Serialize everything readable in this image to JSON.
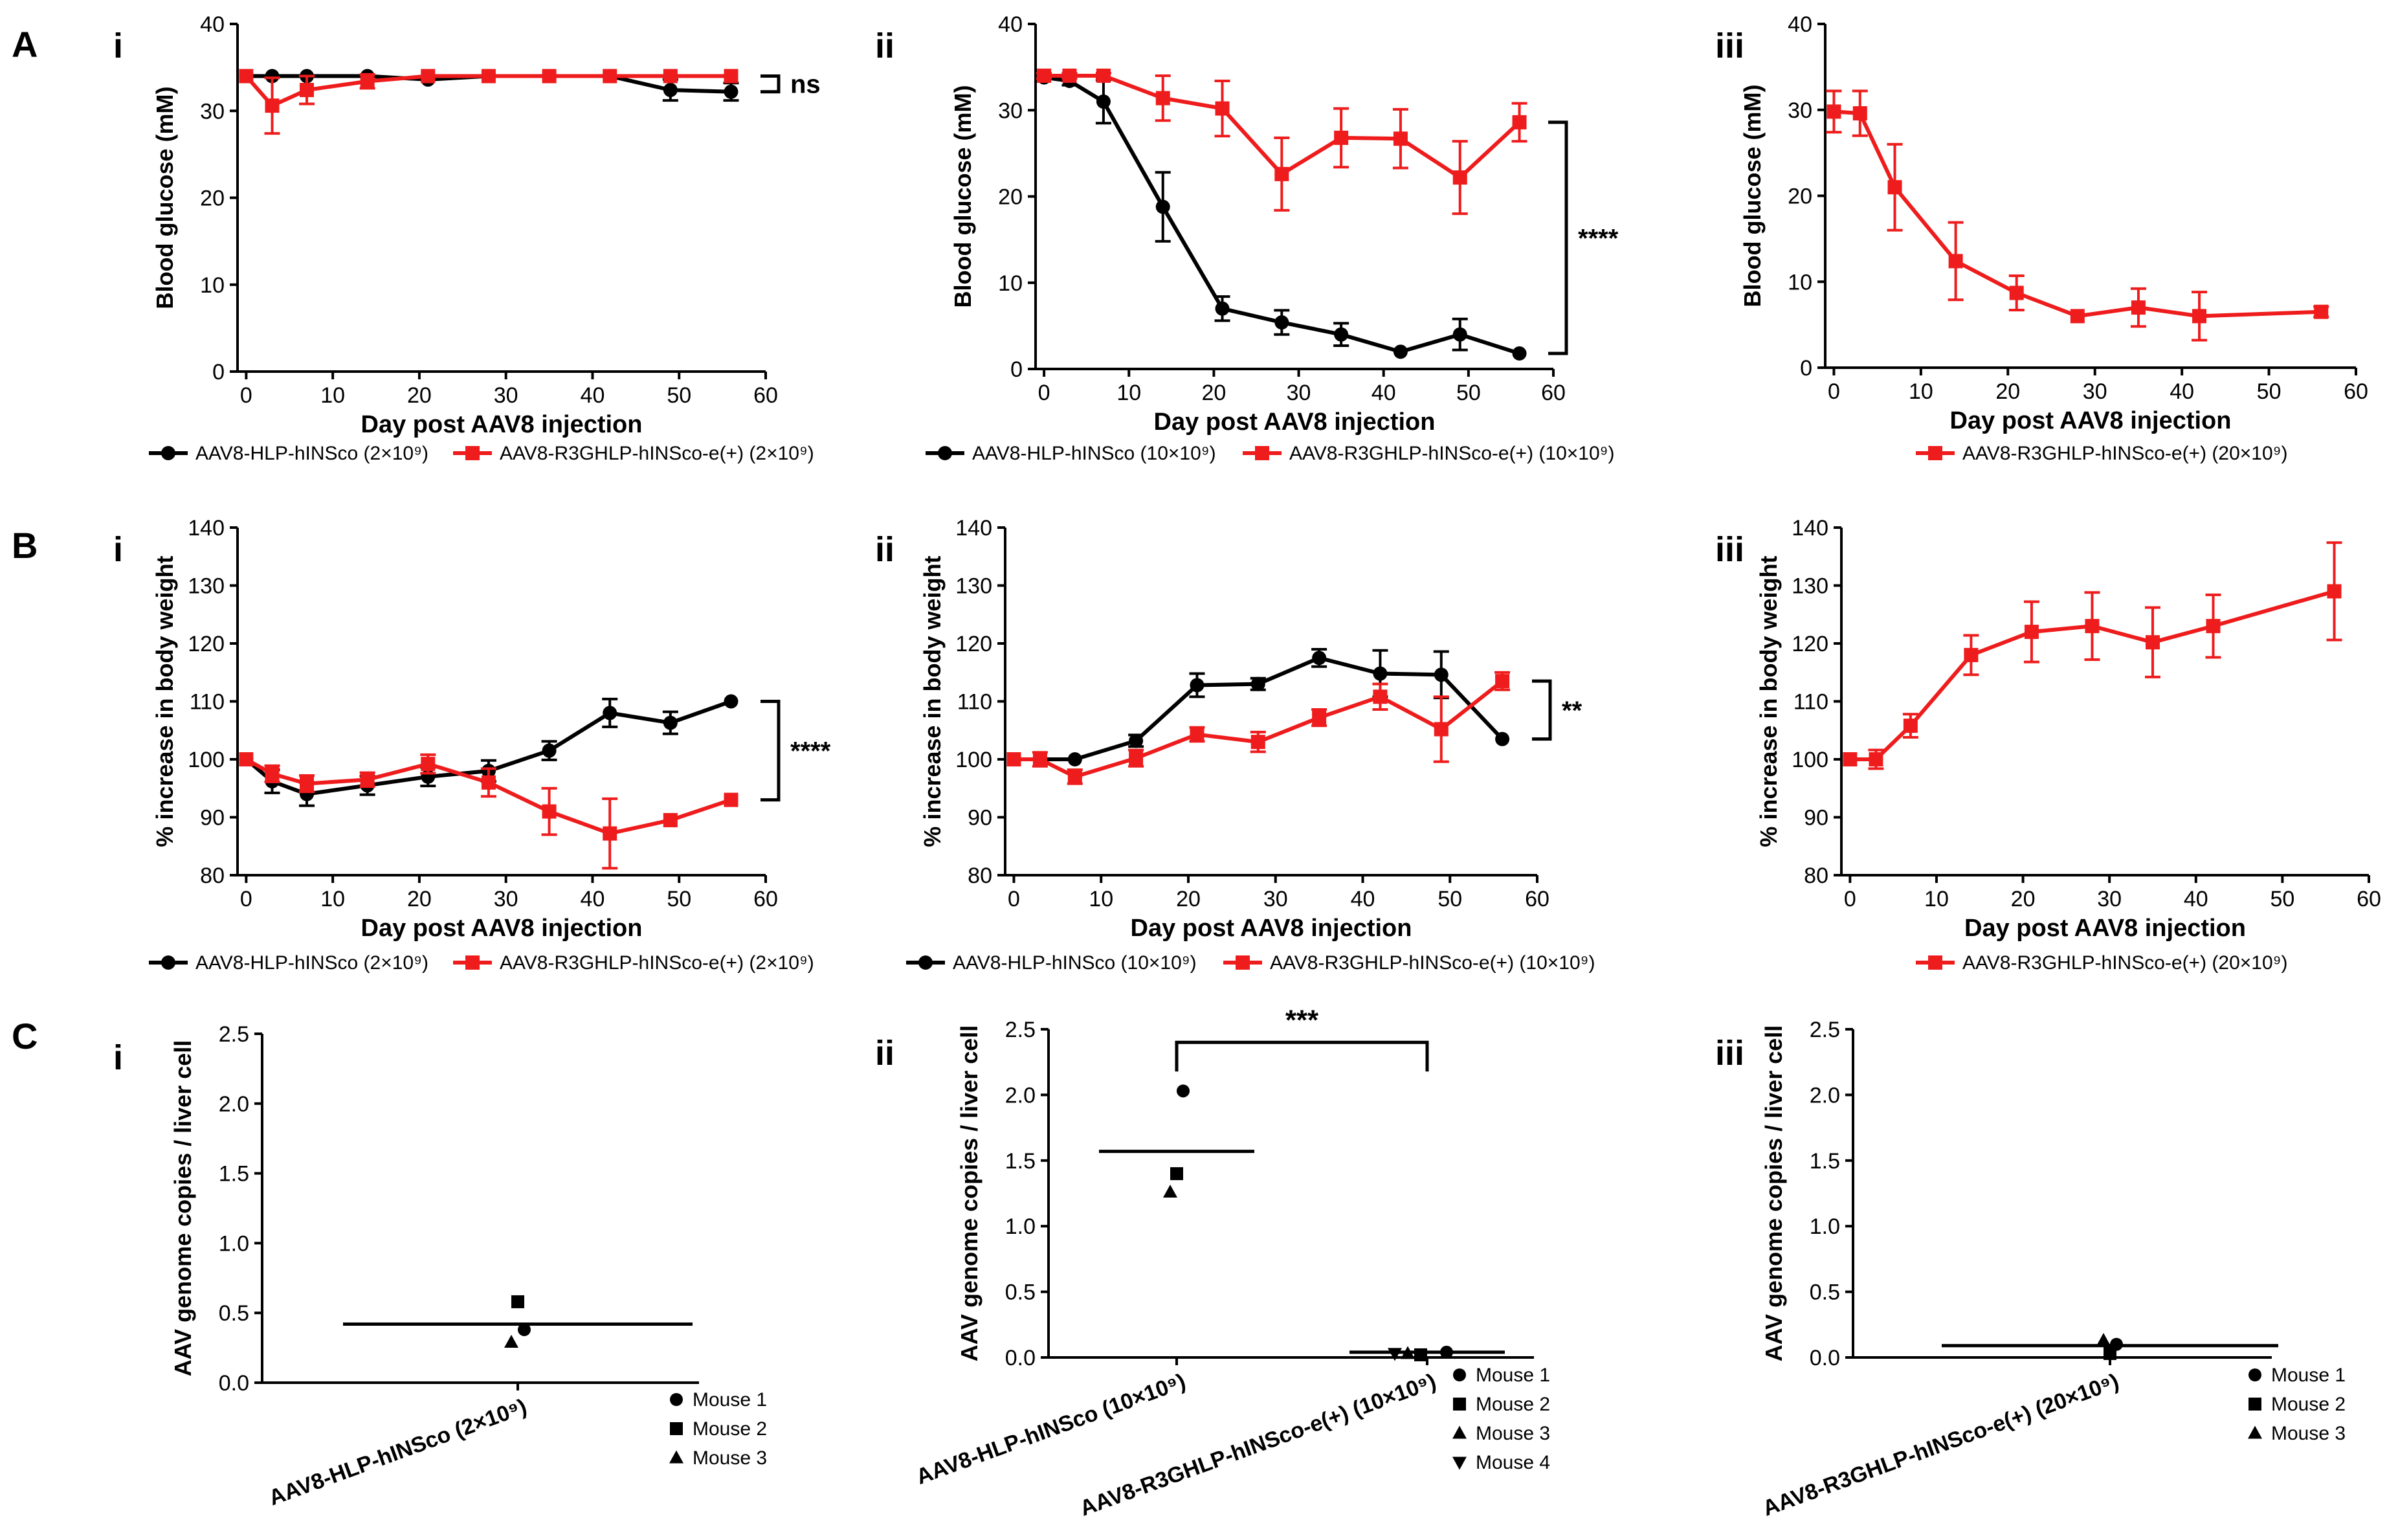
{
  "colors": {
    "black_series": "#000000",
    "red_series": "#ee1c1c"
  },
  "section_labels": [
    "A",
    "B",
    "C"
  ],
  "panel_labels": [
    "i",
    "ii",
    "iii"
  ],
  "chart_data": [
    {
      "id": "A-i",
      "type": "line",
      "ylabel": "Blood glucose (mM)",
      "xlabel": "Day post AAV8 injection",
      "xlim": [
        -1,
        60
      ],
      "ylim": [
        0,
        40
      ],
      "xticks": [
        0,
        10,
        20,
        30,
        40,
        50,
        60
      ],
      "yticks": [
        0,
        10,
        20,
        30,
        40
      ],
      "series": [
        {
          "name": "AAV8-HLP-hINSco",
          "dose": "2×10",
          "exp": "9",
          "color": "#000000",
          "marker": "circle",
          "x": [
            0,
            3,
            7,
            14,
            21,
            28,
            35,
            42,
            49,
            56
          ],
          "y": [
            34,
            34,
            34,
            34,
            33.6,
            34,
            34,
            34,
            32.4,
            32.2
          ],
          "err": [
            0,
            0,
            0,
            0,
            0,
            0,
            0,
            0,
            1.2,
            1.0
          ]
        },
        {
          "name": "AAV8-R3GHLP-hINSco-e(+)",
          "dose": "2×10",
          "exp": "9",
          "color": "#ee1c1c",
          "marker": "square",
          "x": [
            0,
            3,
            7,
            14,
            21,
            28,
            35,
            42,
            49,
            56
          ],
          "y": [
            34,
            30.6,
            32.4,
            33.4,
            34,
            34,
            34,
            34,
            34,
            34
          ],
          "err": [
            0,
            3.2,
            1.6,
            0.8,
            0,
            0,
            0,
            0,
            0,
            0
          ]
        }
      ],
      "significance": {
        "label": "ns",
        "y1": 34,
        "y2": 32.2
      }
    },
    {
      "id": "A-ii",
      "type": "line",
      "ylabel": "Blood glucose (mM)",
      "xlabel": "Day post AAV8 injection",
      "xlim": [
        -1,
        60
      ],
      "ylim": [
        0,
        40
      ],
      "xticks": [
        0,
        10,
        20,
        30,
        40,
        50,
        60
      ],
      "yticks": [
        0,
        10,
        20,
        30,
        40
      ],
      "series": [
        {
          "name": "AAV8-HLP-hINSco",
          "dose": "10×10",
          "exp": "9",
          "color": "#000000",
          "marker": "circle",
          "x": [
            0,
            3,
            7,
            14,
            21,
            28,
            35,
            42,
            49,
            56
          ],
          "y": [
            33.8,
            33.4,
            31,
            18.8,
            7,
            5.4,
            4,
            2,
            4,
            1.8
          ],
          "err": [
            0,
            0.5,
            2.5,
            4,
            1.4,
            1.4,
            1.3,
            0,
            1.8,
            0
          ]
        },
        {
          "name": "AAV8-R3GHLP-hINSco-e(+)",
          "dose": "10×10",
          "exp": "9",
          "color": "#ee1c1c",
          "marker": "square",
          "x": [
            0,
            3,
            7,
            14,
            21,
            28,
            35,
            42,
            49,
            56
          ],
          "y": [
            34,
            34,
            34,
            31.4,
            30.2,
            22.6,
            26.8,
            26.7,
            22.2,
            28.6
          ],
          "err": [
            0.3,
            0.3,
            0.3,
            2.6,
            3.2,
            4.2,
            3.4,
            3.4,
            4.2,
            2.2
          ]
        }
      ],
      "significance": {
        "label": "****",
        "y1": 28.6,
        "y2": 1.8
      }
    },
    {
      "id": "A-iii",
      "type": "line",
      "ylabel": "Blood glucose (mM)",
      "xlabel": "Day post AAV8 injection",
      "xlim": [
        -1,
        60
      ],
      "ylim": [
        0,
        40
      ],
      "xticks": [
        0,
        10,
        20,
        30,
        40,
        50,
        60
      ],
      "yticks": [
        0,
        10,
        20,
        30,
        40
      ],
      "series": [
        {
          "name": "AAV8-R3GHLP-hINSco-e(+)",
          "dose": "20×10",
          "exp": "9",
          "color": "#ee1c1c",
          "marker": "square",
          "x": [
            0,
            3,
            7,
            14,
            21,
            28,
            35,
            42,
            56
          ],
          "y": [
            29.8,
            29.6,
            21,
            12.4,
            8.7,
            6,
            7,
            6,
            6.5
          ],
          "err": [
            2.4,
            2.6,
            5,
            4.5,
            2,
            0,
            2.2,
            2.8,
            0.6
          ]
        }
      ]
    },
    {
      "id": "B-i",
      "type": "line",
      "ylabel": "% increase in body weight",
      "xlabel": "Day post AAV8 injection",
      "xlim": [
        -1,
        60
      ],
      "ylim": [
        80,
        140
      ],
      "xticks": [
        0,
        10,
        20,
        30,
        40,
        50,
        60
      ],
      "yticks": [
        80,
        90,
        100,
        110,
        120,
        130,
        140
      ],
      "series": [
        {
          "name": "AAV8-HLP-hINSco",
          "dose": "2×10",
          "exp": "9",
          "color": "#000000",
          "marker": "circle",
          "x": [
            0,
            3,
            7,
            14,
            21,
            28,
            35,
            42,
            49,
            56
          ],
          "y": [
            100,
            96.2,
            94,
            95.5,
            97,
            98,
            101.5,
            108,
            106.3,
            110
          ],
          "err": [
            0,
            2,
            2,
            1.6,
            1.6,
            1.8,
            1.6,
            2.4,
            1.9,
            0
          ]
        },
        {
          "name": "AAV8-R3GHLP-hINSco-e(+)",
          "dose": "2×10",
          "exp": "9",
          "color": "#ee1c1c",
          "marker": "square",
          "x": [
            0,
            3,
            7,
            14,
            21,
            28,
            35,
            42,
            49,
            56
          ],
          "y": [
            100,
            97.5,
            95.8,
            96.5,
            99.2,
            96,
            91,
            87.2,
            89.5,
            93
          ],
          "err": [
            0,
            1.4,
            1.4,
            1.2,
            1.6,
            2.4,
            4,
            6,
            0,
            0
          ]
        }
      ],
      "significance": {
        "label": "****",
        "y1": 110,
        "y2": 93
      }
    },
    {
      "id": "B-ii",
      "type": "line",
      "ylabel": "% increase in body weight",
      "xlabel": "Day post AAV8 injection",
      "xlim": [
        -1,
        60
      ],
      "ylim": [
        80,
        140
      ],
      "xticks": [
        0,
        10,
        20,
        30,
        40,
        50,
        60
      ],
      "yticks": [
        80,
        90,
        100,
        110,
        120,
        130,
        140
      ],
      "series": [
        {
          "name": "AAV8-HLP-hINSco",
          "dose": "10×10",
          "exp": "9",
          "color": "#000000",
          "marker": "circle",
          "x": [
            0,
            3,
            7,
            14,
            21,
            28,
            35,
            42,
            49,
            56
          ],
          "y": [
            100,
            100,
            100,
            103.2,
            112.8,
            113,
            117.5,
            114.8,
            114.6,
            103.5
          ],
          "err": [
            0,
            0,
            0,
            1,
            2,
            1,
            1.5,
            4,
            4,
            0
          ]
        },
        {
          "name": "AAV8-R3GHLP-hINSco-e(+)",
          "dose": "10×10",
          "exp": "9",
          "color": "#ee1c1c",
          "marker": "square",
          "x": [
            0,
            3,
            7,
            14,
            21,
            28,
            35,
            42,
            49,
            56
          ],
          "y": [
            100,
            100,
            97,
            100.2,
            104.3,
            103,
            107.2,
            110.8,
            105.2,
            113.5
          ],
          "err": [
            0,
            1.2,
            1.2,
            1.4,
            1.2,
            1.7,
            1.4,
            2.2,
            5.6,
            1.5
          ]
        }
      ],
      "significance": {
        "label": "**",
        "y1": 113.5,
        "y2": 103.5
      }
    },
    {
      "id": "B-iii",
      "type": "line",
      "ylabel": "% increase in body weight",
      "xlabel": "Day post AAV8 injection",
      "xlim": [
        -1,
        60
      ],
      "ylim": [
        80,
        140
      ],
      "xticks": [
        0,
        10,
        20,
        30,
        40,
        50,
        60
      ],
      "yticks": [
        80,
        90,
        100,
        110,
        120,
        130,
        140
      ],
      "series": [
        {
          "name": "AAV8-R3GHLP-hINSco-e(+)",
          "dose": "20×10",
          "exp": "9",
          "color": "#ee1c1c",
          "marker": "square",
          "x": [
            0,
            3,
            7,
            14,
            21,
            28,
            35,
            42,
            56
          ],
          "y": [
            100,
            100,
            105.8,
            118,
            122,
            123,
            120.2,
            123,
            129
          ],
          "err": [
            0,
            1.6,
            2,
            3.4,
            5.2,
            5.8,
            6,
            5.4,
            8.4
          ]
        }
      ]
    },
    {
      "id": "C-i",
      "type": "scatter",
      "ylabel": "AAV genome copies / liver cell",
      "ylim": [
        0,
        2.5
      ],
      "yticks": [
        0.0,
        0.5,
        1.0,
        1.5,
        2.0,
        2.5
      ],
      "groups": [
        {
          "name": "AAV8-HLP-hINSco",
          "dose": "2×10",
          "exp": "9",
          "mean": 0.42,
          "points": [
            {
              "mouse": "Mouse 1",
              "value": 0.38
            },
            {
              "mouse": "Mouse 2",
              "value": 0.58
            },
            {
              "mouse": "Mouse 3",
              "value": 0.29
            }
          ]
        }
      ],
      "legend": [
        "Mouse 1",
        "Mouse 2",
        "Mouse 3"
      ]
    },
    {
      "id": "C-ii",
      "type": "scatter",
      "ylabel": "AAV genome copies / liver cell",
      "ylim": [
        0,
        2.5
      ],
      "yticks": [
        0.0,
        0.5,
        1.0,
        1.5,
        2.0,
        2.5
      ],
      "groups": [
        {
          "name": "AAV8-HLP-hINSco",
          "dose": "10×10",
          "exp": "9",
          "mean": 1.57,
          "points": [
            {
              "mouse": "Mouse 1",
              "value": 2.03
            },
            {
              "mouse": "Mouse 2",
              "value": 1.4
            },
            {
              "mouse": "Mouse 3",
              "value": 1.26
            }
          ]
        },
        {
          "name": "AAV8-R3GHLP-hINSco-e(+)",
          "dose": "10×10",
          "exp": "9",
          "mean": 0.04,
          "points": [
            {
              "mouse": "Mouse 1",
              "value": 0.04
            },
            {
              "mouse": "Mouse 2",
              "value": 0.02
            },
            {
              "mouse": "Mouse 3",
              "value": 0.03
            },
            {
              "mouse": "Mouse 4",
              "value": 0.03
            }
          ]
        }
      ],
      "significance": {
        "label": "***",
        "y": 2.4
      },
      "legend": [
        "Mouse 1",
        "Mouse 2",
        "Mouse 3",
        "Mouse 4"
      ]
    },
    {
      "id": "C-iii",
      "type": "scatter",
      "ylabel": "AAV genome copies / liver cell",
      "ylim": [
        0,
        2.5
      ],
      "yticks": [
        0.0,
        0.5,
        1.0,
        1.5,
        2.0,
        2.5
      ],
      "groups": [
        {
          "name": "AAV8-R3GHLP-hINSco-e(+)",
          "dose": "20×10",
          "exp": "9",
          "mean": 0.09,
          "points": [
            {
              "mouse": "Mouse 1",
              "value": 0.1
            },
            {
              "mouse": "Mouse 2",
              "value": 0.03
            },
            {
              "mouse": "Mouse 3",
              "value": 0.13
            }
          ]
        }
      ],
      "legend": [
        "Mouse 1",
        "Mouse 2",
        "Mouse 3"
      ]
    }
  ]
}
